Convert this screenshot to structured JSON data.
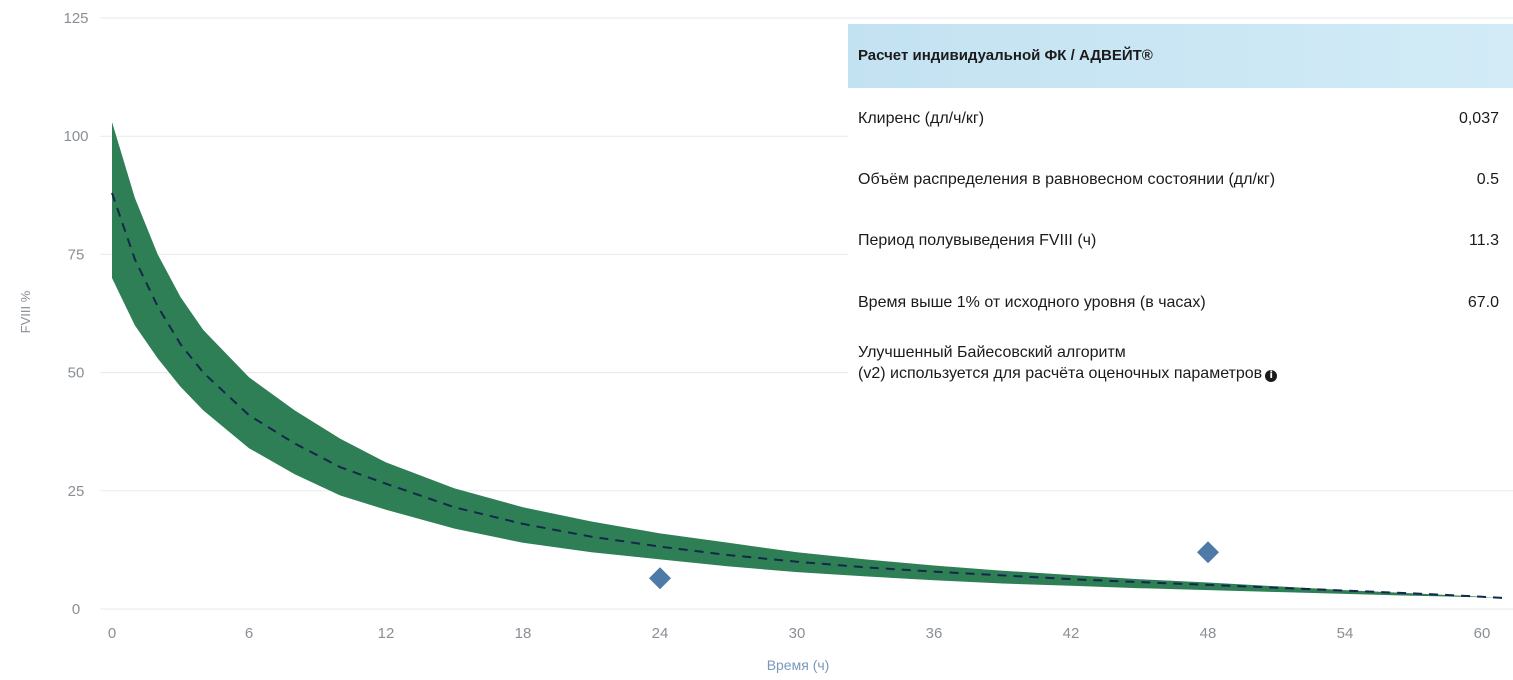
{
  "chart_data": {
    "type": "line",
    "xlabel": "Время (ч)",
    "ylabel": "FVIII %",
    "xlim": [
      0,
      61
    ],
    "ylim": [
      0,
      125
    ],
    "xticks": [
      0,
      6,
      12,
      18,
      24,
      30,
      36,
      42,
      48,
      54,
      60
    ],
    "yticks": [
      0,
      25,
      50,
      75,
      100,
      125
    ],
    "grid": true,
    "series": [
      {
        "kind": "line-dashed",
        "x": [
          0,
          1,
          2,
          3,
          4,
          6,
          8,
          10,
          12,
          15,
          18,
          21,
          24,
          27,
          30,
          33,
          36,
          39,
          42,
          45,
          48,
          51,
          54,
          57,
          60,
          61
        ],
        "values": [
          88,
          74,
          64,
          56,
          50,
          41,
          35,
          30,
          26.5,
          21.5,
          18,
          15.3,
          13.2,
          11.4,
          10,
          8.8,
          7.9,
          7.1,
          6.3,
          5.7,
          5.1,
          4.5,
          3.9,
          3.3,
          2.6,
          2.3
        ]
      },
      {
        "kind": "band-upper",
        "x": [
          0,
          1,
          2,
          3,
          4,
          6,
          8,
          10,
          12,
          15,
          18,
          21,
          24,
          27,
          30,
          33,
          36,
          39,
          42,
          45,
          48,
          51,
          54,
          57,
          60,
          61
        ],
        "values": [
          103,
          87,
          75,
          66,
          59,
          49,
          42,
          36,
          31,
          25.5,
          21.5,
          18.5,
          16,
          14,
          12,
          10.5,
          9.2,
          8.1,
          7.2,
          6.3,
          5.6,
          4.8,
          4.0,
          3.3,
          2.6,
          2.3
        ]
      },
      {
        "kind": "band-lower",
        "x": [
          0,
          1,
          2,
          3,
          4,
          6,
          8,
          10,
          12,
          15,
          18,
          21,
          24,
          27,
          30,
          33,
          36,
          39,
          42,
          45,
          48,
          51,
          54,
          57,
          60,
          61
        ],
        "values": [
          70,
          60,
          53,
          47,
          42,
          34,
          28.5,
          24,
          21,
          17,
          14,
          12,
          10.5,
          9,
          7.8,
          6.9,
          6.1,
          5.4,
          4.9,
          4.4,
          4.0,
          3.6,
          3.2,
          2.8,
          2.5,
          2.3
        ]
      },
      {
        "kind": "observed-points",
        "x": [
          24,
          48
        ],
        "values": [
          6.5,
          12
        ]
      }
    ],
    "colors": {
      "band": "#2e7f55",
      "dashed_line": "#13284a",
      "points": "#4e7aa8",
      "grid": "#eaeaea"
    }
  },
  "panel": {
    "title": "Расчет индивидуальной ФК / АДВЕЙТ®",
    "rows": [
      {
        "label": "Клиренс (дл/ч/кг)",
        "value": "0,037"
      },
      {
        "label": "Объём распределения в равновесном состоянии (дл/кг)",
        "value": "0.5"
      },
      {
        "label": "Период полувыведения FVIII (ч)",
        "value": "11.3"
      },
      {
        "label": "Время выше 1% от исходного уровня (в часах)",
        "value": "67.0"
      }
    ],
    "note_line1": "Улучшенный Байесовский алгоритм",
    "note_line2": "(v2) используется для расчёта оценочных параметров",
    "info_icon": "i"
  }
}
